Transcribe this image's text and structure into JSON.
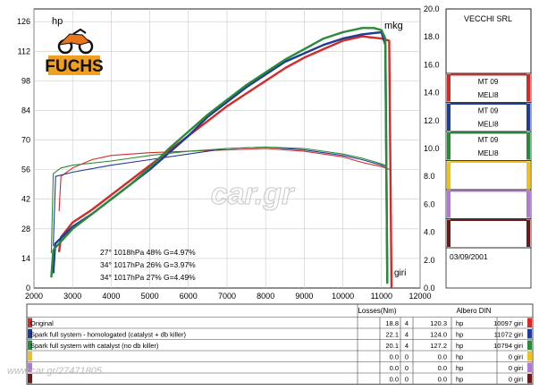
{
  "chart_data": {
    "type": "line",
    "left_unit": "hp",
    "right_unit": "mkg",
    "x_unit_label": "giri",
    "xlim": [
      2000,
      12000
    ],
    "ylim_left": [
      0,
      132
    ],
    "ylim_right": [
      0,
      20
    ],
    "x_ticks": [
      "2000",
      "3000",
      "4000",
      "5000",
      "6000",
      "7000",
      "8000",
      "9000",
      "10000",
      "11000",
      "12000"
    ],
    "x_tick_values": [
      2000,
      3000,
      4000,
      5000,
      6000,
      7000,
      8000,
      9000,
      10000,
      11000,
      12000
    ],
    "y_left_ticks": [
      "0",
      "14",
      "28",
      "42",
      "56",
      "70",
      "84",
      "98",
      "112",
      "126"
    ],
    "y_left_values": [
      0,
      14,
      28,
      42,
      56,
      70,
      84,
      98,
      112,
      126
    ],
    "y_right_ticks": [
      "0.0",
      "2.0",
      "4.0",
      "6.0",
      "8.0",
      "10.0",
      "12.0",
      "14.0",
      "16.0",
      "18.0",
      "20.0"
    ],
    "y_right_values": [
      0,
      2,
      4,
      6,
      8,
      10,
      12,
      14,
      16,
      18,
      20
    ],
    "grid": true,
    "series": [
      {
        "color": "#d42a2a",
        "power_hp": [
          [
            2650,
            17
          ],
          [
            2700,
            24
          ],
          [
            3000,
            31
          ],
          [
            3500,
            37
          ],
          [
            4000,
            44
          ],
          [
            4500,
            51
          ],
          [
            5000,
            58
          ],
          [
            5500,
            65
          ],
          [
            6000,
            72
          ],
          [
            6500,
            79
          ],
          [
            7000,
            86
          ],
          [
            7500,
            92
          ],
          [
            8000,
            98
          ],
          [
            8500,
            104
          ],
          [
            9000,
            109
          ],
          [
            9500,
            113
          ],
          [
            10000,
            117
          ],
          [
            10500,
            119
          ],
          [
            11000,
            118
          ],
          [
            11200,
            117
          ],
          [
            11260,
            0
          ]
        ],
        "torque_mkg": [
          [
            2650,
            5.5
          ],
          [
            2700,
            8.0
          ],
          [
            3000,
            8.6
          ],
          [
            3500,
            9.2
          ],
          [
            4000,
            9.5
          ],
          [
            5000,
            9.7
          ],
          [
            6000,
            9.8
          ],
          [
            7000,
            9.9
          ],
          [
            8000,
            10.0
          ],
          [
            9000,
            9.8
          ],
          [
            10000,
            9.4
          ],
          [
            10500,
            9.0
          ],
          [
            11000,
            8.7
          ],
          [
            11200,
            8.5
          ]
        ]
      },
      {
        "color": "#1f3c96",
        "power_hp": [
          [
            2500,
            7
          ],
          [
            2550,
            21
          ],
          [
            3000,
            29
          ],
          [
            3500,
            35
          ],
          [
            4000,
            42
          ],
          [
            4500,
            49
          ],
          [
            5000,
            56
          ],
          [
            5500,
            64
          ],
          [
            6000,
            72
          ],
          [
            6500,
            81
          ],
          [
            7000,
            88
          ],
          [
            7500,
            95
          ],
          [
            8000,
            101
          ],
          [
            8500,
            107
          ],
          [
            9000,
            111
          ],
          [
            9500,
            115
          ],
          [
            10000,
            118
          ],
          [
            10500,
            120
          ],
          [
            11000,
            121
          ],
          [
            11100,
            115
          ],
          [
            11150,
            3
          ]
        ],
        "torque_mkg": [
          [
            2500,
            3.0
          ],
          [
            2560,
            8.0
          ],
          [
            3000,
            8.3
          ],
          [
            4000,
            8.8
          ],
          [
            5000,
            9.2
          ],
          [
            6000,
            9.6
          ],
          [
            7000,
            10.0
          ],
          [
            8000,
            10.1
          ],
          [
            9000,
            9.9
          ],
          [
            10000,
            9.5
          ],
          [
            10500,
            9.2
          ],
          [
            11000,
            8.8
          ],
          [
            11100,
            8.7
          ]
        ]
      },
      {
        "color": "#2a8a3a",
        "power_hp": [
          [
            2450,
            5
          ],
          [
            2500,
            18
          ],
          [
            3000,
            28
          ],
          [
            3500,
            35
          ],
          [
            4000,
            42
          ],
          [
            4500,
            49
          ],
          [
            5000,
            57
          ],
          [
            5500,
            66
          ],
          [
            6000,
            74
          ],
          [
            6500,
            82
          ],
          [
            7000,
            89
          ],
          [
            7500,
            96
          ],
          [
            8000,
            102
          ],
          [
            8500,
            108
          ],
          [
            9000,
            113
          ],
          [
            9500,
            118
          ],
          [
            10000,
            121
          ],
          [
            10500,
            123
          ],
          [
            10800,
            123
          ],
          [
            11000,
            122
          ],
          [
            11100,
            118
          ],
          [
            11150,
            2
          ]
        ],
        "torque_mkg": [
          [
            2450,
            2.5
          ],
          [
            2500,
            8.2
          ],
          [
            2700,
            8.6
          ],
          [
            3000,
            8.8
          ],
          [
            4000,
            9.1
          ],
          [
            5000,
            9.5
          ],
          [
            6000,
            9.8
          ],
          [
            7000,
            10.0
          ],
          [
            8000,
            10.1
          ],
          [
            9000,
            10.0
          ],
          [
            10000,
            9.6
          ],
          [
            10500,
            9.3
          ],
          [
            11000,
            8.9
          ],
          [
            11100,
            8.8
          ]
        ]
      }
    ],
    "annotations": [
      {
        "text": "27° 1018hPa  48%   G=4.97%",
        "color": "#d42a2a"
      },
      {
        "text": "34° 1017hPa  26%   G=3.97%",
        "color": "#1f3c96"
      },
      {
        "text": "34° 1017hPa  27%   G=4.49%",
        "color": "#2a8a3a"
      }
    ]
  },
  "header": {
    "company": "VECCHI SRL",
    "logo_text": "FUCHS"
  },
  "legend_boxes": [
    {
      "line1": "MT 09",
      "line2": "MELI8",
      "color": "#d42a2a"
    },
    {
      "line1": "MT 09",
      "line2": "MELI8",
      "color": "#1f3c96"
    },
    {
      "line1": "MT 09",
      "line2": "MELI8",
      "color": "#2a8a3a"
    },
    {
      "line1": "",
      "line2": "",
      "color": "#f0c020"
    },
    {
      "line1": "",
      "line2": "",
      "color": "#b07ad0"
    },
    {
      "line1": "",
      "line2": "",
      "color": "#6a1a1a"
    }
  ],
  "date": "03/09/2001",
  "watermark": "car.gr",
  "phone_watermark": "www.car.gr/27471805",
  "table": {
    "losses_header": "Losses(Nm)",
    "albero_header": "Albero DIN",
    "rows": [
      {
        "label": "Original",
        "loss": "18.8",
        "gear": "4",
        "power": "120.3",
        "hp_unit": "hp",
        "rpm": "10097",
        "giri": "giri",
        "color": "#d42a2a"
      },
      {
        "label": "Spark full system - homologated (catalyst + db killer)",
        "loss": "22.1",
        "gear": "4",
        "power": "124.0",
        "hp_unit": "hp",
        "rpm": "11072",
        "giri": "giri",
        "color": "#1f3c96"
      },
      {
        "label": "Spark full system with catalyst (no db killer)",
        "loss": "20.1",
        "gear": "4",
        "power": "127.2",
        "hp_unit": "hp",
        "rpm": "10794",
        "giri": "giri",
        "color": "#2a8a3a"
      },
      {
        "label": "",
        "loss": "0.0",
        "gear": "0",
        "power": "0.0",
        "hp_unit": "hp",
        "rpm": "0",
        "giri": "giri",
        "color": "#f0c020"
      },
      {
        "label": "",
        "loss": "0.0",
        "gear": "0",
        "power": "0.0",
        "hp_unit": "hp",
        "rpm": "0",
        "giri": "giri",
        "color": "#b07ad0"
      },
      {
        "label": "",
        "loss": "0.0",
        "gear": "0",
        "power": "0.0",
        "hp_unit": "hp",
        "rpm": "0",
        "giri": "giri",
        "color": "#6a1a1a"
      }
    ]
  }
}
